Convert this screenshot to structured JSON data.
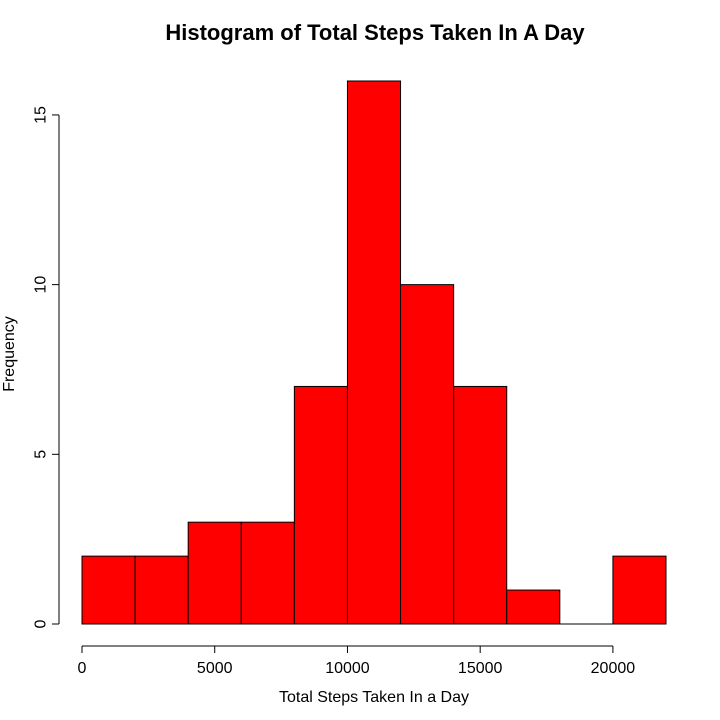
{
  "chart_data": {
    "type": "bar",
    "title": "Histogram of Total Steps Taken In A Day",
    "xlabel": "Total Steps Taken In a Day",
    "ylabel": "Frequency",
    "bins": [
      {
        "start": 0,
        "end": 2000,
        "count": 2
      },
      {
        "start": 2000,
        "end": 4000,
        "count": 2
      },
      {
        "start": 4000,
        "end": 6000,
        "count": 3
      },
      {
        "start": 6000,
        "end": 8000,
        "count": 3
      },
      {
        "start": 8000,
        "end": 10000,
        "count": 7
      },
      {
        "start": 10000,
        "end": 12000,
        "count": 16
      },
      {
        "start": 12000,
        "end": 14000,
        "count": 10
      },
      {
        "start": 14000,
        "end": 16000,
        "count": 7
      },
      {
        "start": 16000,
        "end": 18000,
        "count": 1
      },
      {
        "start": 18000,
        "end": 20000,
        "count": 0
      },
      {
        "start": 20000,
        "end": 22000,
        "count": 2
      }
    ],
    "xlim": [
      0,
      22000
    ],
    "ylim": [
      0,
      16
    ],
    "x_ticks": [
      0,
      5000,
      10000,
      15000,
      20000
    ],
    "y_ticks": [
      0,
      5,
      10,
      15
    ],
    "bar_color": "#ff0000",
    "bar_border_color": "#000000",
    "grid": false
  }
}
